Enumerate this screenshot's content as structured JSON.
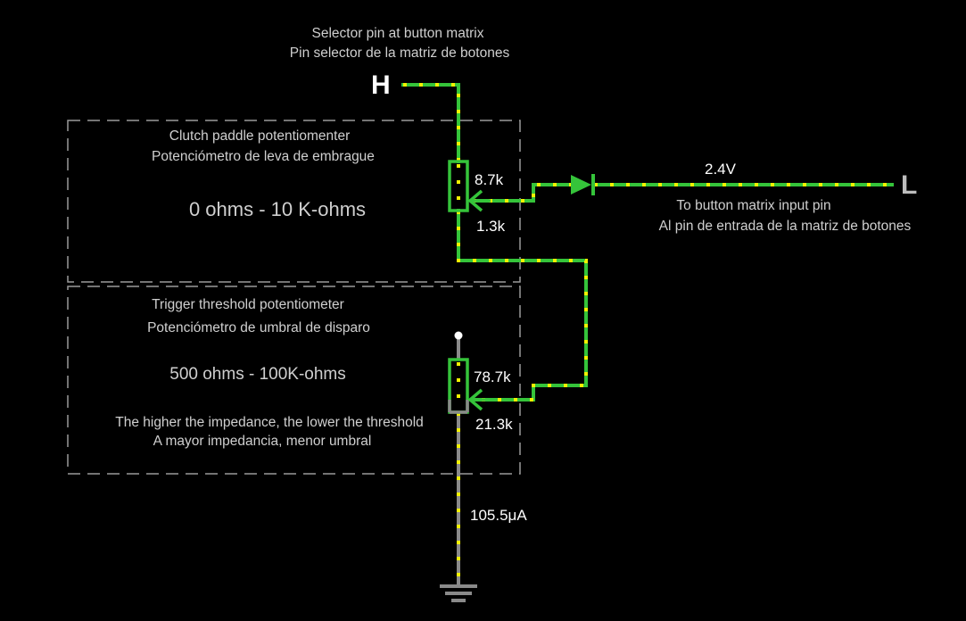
{
  "nodes": {
    "high": "H",
    "low": "L"
  },
  "selector_label": {
    "line1": "Selector pin at button matrix",
    "line2": "Pin selector de la matriz de botones"
  },
  "input_label": {
    "line1": "To button matrix input pin",
    "line2": "Al pin de entrada de la matriz de botones"
  },
  "clutch_box": {
    "title": "Clutch paddle potentiomenter",
    "subtitle": "Potenciómetro de leva de embrague",
    "range": "0 ohms - 10 K-ohms"
  },
  "trigger_box": {
    "title": "Trigger threshold potentiometer",
    "subtitle": "Potenciómetro de umbral de disparo",
    "range": "500 ohms - 100K-ohms",
    "note1": "The higher the impedance, the lower the threshold",
    "note2": "A mayor impedancia, menor umbral"
  },
  "readouts": {
    "clutch_upper": "8.7k",
    "clutch_lower": "1.3k",
    "trigger_upper": "78.7k",
    "trigger_lower": "21.3k",
    "diode_voltage": "2.4V",
    "ground_current": "105.5μA"
  },
  "colors": {
    "wire": "#35c43a",
    "current_dots": "#f2f200",
    "inactive_wire": "#8a8a8a",
    "background": "#000000"
  }
}
